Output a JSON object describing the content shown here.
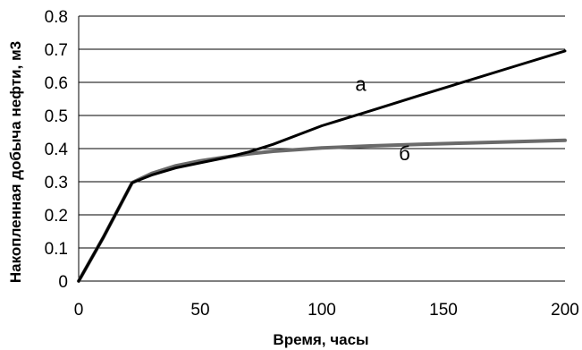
{
  "chart_data": {
    "type": "line",
    "title": "",
    "xlabel": "Время, часы",
    "ylabel": "Накопленная добыча нефти, м3",
    "xlim": [
      0,
      200
    ],
    "ylim": [
      0,
      0.8
    ],
    "x_ticks": [
      "0",
      "50",
      "100",
      "150",
      "200"
    ],
    "y_ticks": [
      "0",
      "0.1",
      "0.2",
      "0.3",
      "0.4",
      "0.5",
      "0.6",
      "0.7",
      "0.8"
    ],
    "grid": "horizontal",
    "series": [
      {
        "name": "а",
        "color": "#000000",
        "x": [
          0,
          10,
          22,
          30,
          40,
          50,
          60,
          70,
          80,
          100,
          120,
          140,
          160,
          180,
          200
        ],
        "y": [
          0,
          0.13,
          0.297,
          0.32,
          0.342,
          0.357,
          0.372,
          0.39,
          0.413,
          0.469,
          0.514,
          0.56,
          0.605,
          0.65,
          0.695
        ]
      },
      {
        "name": "б",
        "color": "#6a6a6a",
        "x": [
          0,
          10,
          22,
          30,
          40,
          50,
          60,
          70,
          80,
          100,
          120,
          140,
          160,
          180,
          200
        ],
        "y": [
          0,
          0.13,
          0.297,
          0.325,
          0.348,
          0.363,
          0.374,
          0.384,
          0.392,
          0.402,
          0.408,
          0.413,
          0.417,
          0.421,
          0.425
        ]
      }
    ],
    "annotations": [
      {
        "text": "а",
        "x": 116,
        "y": 0.575
      },
      {
        "text": "б",
        "x": 134,
        "y": 0.365
      }
    ]
  }
}
